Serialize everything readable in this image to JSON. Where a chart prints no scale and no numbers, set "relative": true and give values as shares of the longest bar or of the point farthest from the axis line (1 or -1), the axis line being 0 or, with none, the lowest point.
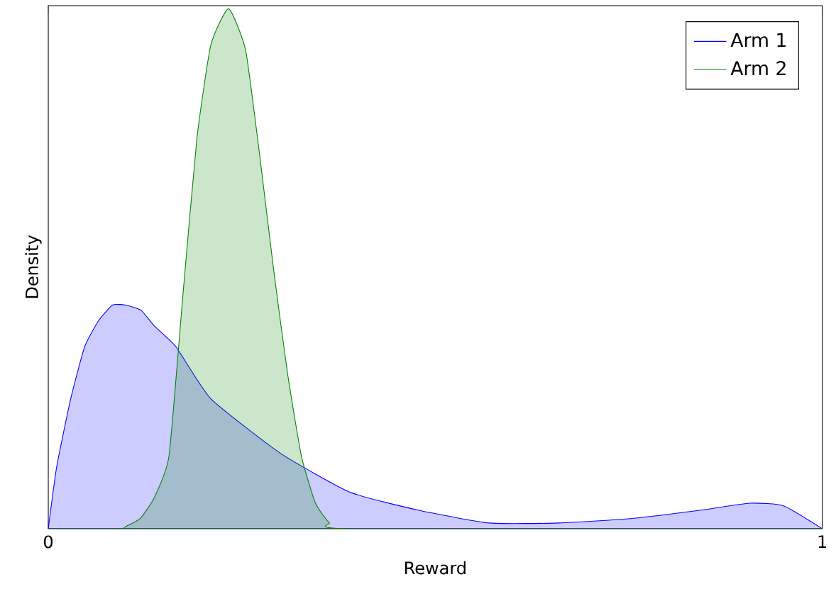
{
  "chart_data": {
    "type": "area",
    "xlabel": "Reward",
    "ylabel": "Density",
    "relative": true,
    "xlim": [
      0,
      1
    ],
    "xticks": [
      0,
      1
    ],
    "legend": "top right",
    "grid": false,
    "series": [
      {
        "name": "Arm 1",
        "color": "#0000ff",
        "x": [
          0,
          0.011,
          0.029,
          0.047,
          0.065,
          0.083,
          0.1,
          0.12,
          0.137,
          0.165,
          0.21,
          0.3,
          0.39,
          0.48,
          0.57,
          0.66,
          0.75,
          0.84,
          0.906,
          0.95,
          1
        ],
        "values": [
          0,
          0.12,
          0.25,
          0.35,
          0.4,
          0.43,
          0.43,
          0.42,
          0.39,
          0.35,
          0.25,
          0.145,
          0.07,
          0.035,
          0.011,
          0.011,
          0.019,
          0.035,
          0.049,
          0.044,
          0
        ]
      },
      {
        "name": "Arm 2",
        "color": "#008000",
        "x": [
          0,
          0.092,
          0.101,
          0.119,
          0.137,
          0.156,
          0.174,
          0.192,
          0.21,
          0.233,
          0.255,
          0.273,
          0.291,
          0.309,
          0.327,
          0.345,
          0.363,
          0.39,
          1
        ],
        "values": [
          0,
          0,
          0.005,
          0.02,
          0.06,
          0.14,
          0.45,
          0.75,
          0.93,
          1,
          0.92,
          0.72,
          0.5,
          0.3,
          0.14,
          0.05,
          0.012,
          0,
          0
        ]
      }
    ]
  }
}
